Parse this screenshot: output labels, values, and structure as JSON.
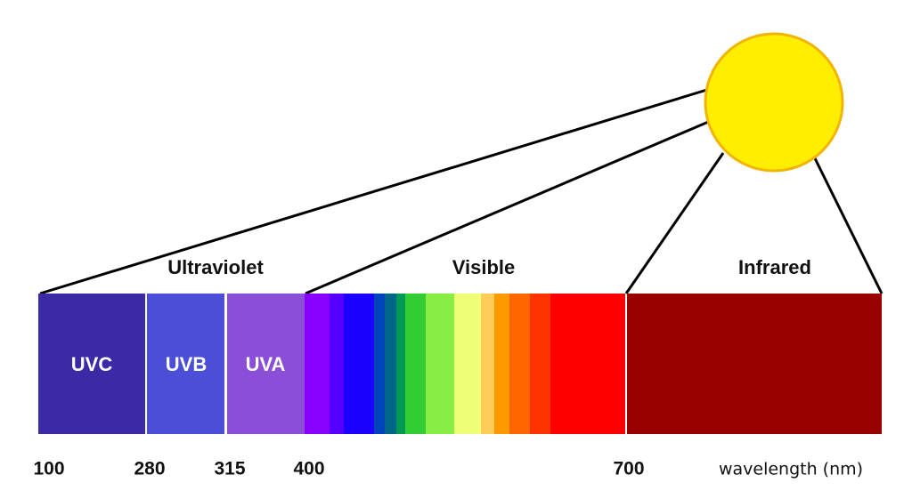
{
  "regions": {
    "ultraviolet": "Ultraviolet",
    "visible": "Visible",
    "infrared": "Infrared"
  },
  "bands": [
    "UVC",
    "UVB",
    "UVA"
  ],
  "ticks": [
    "100",
    "280",
    "315",
    "400",
    "700"
  ],
  "axis_label": "wavelength (nm)"
}
